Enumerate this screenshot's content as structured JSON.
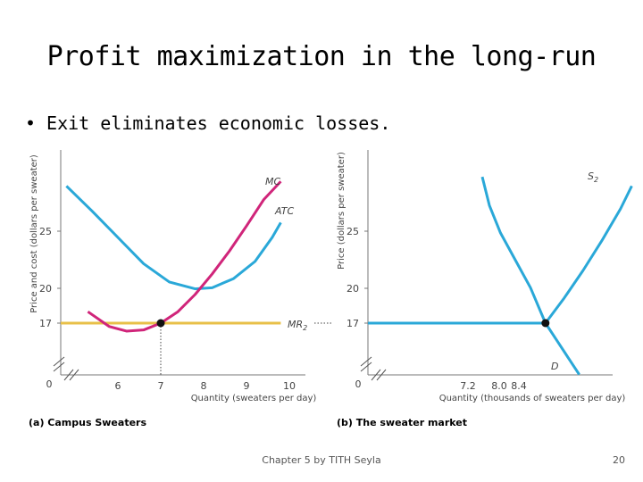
{
  "slide": {
    "title": "Profit maximization in the long-run",
    "bullet_text": "Exit eliminates economic losses.",
    "footer": "Chapter 5 by TITH Seyla",
    "page_number": "20"
  },
  "colors": {
    "blue": "#2aa8d8",
    "magenta": "#d0257a",
    "gold": "#e8c048",
    "axis": "#777777"
  },
  "chart_data": [
    {
      "type": "line",
      "caption": "(a) Campus Sweaters",
      "xlabel": "Quantity (sweaters per day)",
      "ylabel": "Price and cost (dollars per sweater)",
      "xlim": [
        0,
        10
      ],
      "ylim": [
        0,
        30
      ],
      "x_ticks": [
        "0",
        "6",
        "7",
        "8",
        "9",
        "10"
      ],
      "y_ticks": [
        "17",
        "20",
        "25"
      ],
      "series": [
        {
          "name": "MC",
          "color": "#d0257a",
          "x": [
            5.3,
            5.8,
            6.2,
            6.6,
            7.0,
            7.4,
            7.8,
            8.2,
            8.6,
            9.0,
            9.4,
            9.8
          ],
          "y": [
            18.0,
            16.7,
            16.3,
            16.4,
            17.0,
            18.0,
            19.5,
            21.3,
            23.3,
            25.5,
            27.8,
            29.4
          ]
        },
        {
          "name": "ATC",
          "color": "#2aa8d8",
          "x": [
            4.8,
            5.4,
            6.0,
            6.6,
            7.2,
            7.8,
            8.2,
            8.7,
            9.2,
            9.6,
            9.8
          ],
          "y": [
            29.0,
            26.8,
            24.5,
            22.2,
            20.6,
            20.0,
            20.1,
            20.9,
            22.4,
            24.5,
            25.8
          ]
        },
        {
          "name": "MR2",
          "color": "#e8c048",
          "x": [
            0,
            10
          ],
          "y": [
            17,
            17
          ]
        }
      ],
      "points": [
        {
          "x": 7,
          "y": 17
        }
      ],
      "labels": {
        "mc": "MC",
        "atc": "ATC",
        "mr": "MR",
        "mr_sub": "2"
      }
    },
    {
      "type": "line",
      "caption": "(b) The sweater market",
      "xlabel": "Quantity (thousands of sweaters per day)",
      "ylabel": "Price (dollars per sweater)",
      "xlim": [
        0,
        12
      ],
      "ylim": [
        0,
        30
      ],
      "x_ticks": [
        "0",
        "7.2",
        "8.0",
        "8.4"
      ],
      "y_ticks": [
        "17",
        "20",
        "25"
      ],
      "series": [
        {
          "name": "D",
          "color": "#2aa8d8",
          "x": [
            6.4,
            6.8,
            7.2,
            7.6,
            8.0,
            8.4,
            8.7,
            9.0,
            9.3
          ],
          "y": [
            29.8,
            27.3,
            24.9,
            22.5,
            20.1,
            17.0,
            15.5,
            14.0,
            12.5
          ]
        },
        {
          "name": "S2",
          "color": "#2aa8d8",
          "x": [
            8.4,
            8.9,
            9.4,
            9.9,
            10.4,
            10.7
          ],
          "y": [
            17.0,
            19.2,
            21.6,
            24.2,
            27.0,
            29.0
          ]
        },
        {
          "name": "Price",
          "color": "#2aa8d8",
          "x": [
            0,
            8.4
          ],
          "y": [
            17,
            17
          ]
        }
      ],
      "points": [
        {
          "x": 8.4,
          "y": 17
        }
      ],
      "labels": {
        "d": "D",
        "s": "S",
        "s_sub": "2"
      }
    }
  ]
}
